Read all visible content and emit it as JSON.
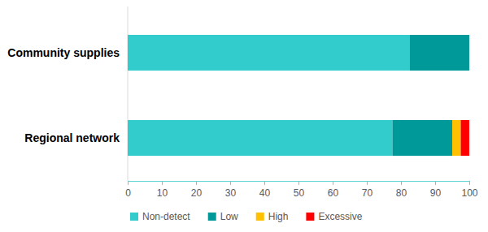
{
  "chart_data": {
    "type": "bar",
    "orientation": "horizontal",
    "stacked": true,
    "categories": [
      "Community supplies",
      "Regional network"
    ],
    "series": [
      {
        "name": "Non-detect",
        "color": "#33cccc",
        "values": [
          82.5,
          77.5
        ]
      },
      {
        "name": "Low",
        "color": "#009999",
        "values": [
          17.5,
          17.5
        ]
      },
      {
        "name": "High",
        "color": "#ffc000",
        "values": [
          0,
          2.5
        ]
      },
      {
        "name": "Excessive",
        "color": "#ff0000",
        "values": [
          0,
          2.5
        ]
      }
    ],
    "xlim": [
      0,
      100
    ],
    "xticks": [
      0,
      10,
      20,
      30,
      40,
      50,
      60,
      70,
      80,
      90,
      100
    ],
    "legend": "bottom",
    "grid": false
  }
}
